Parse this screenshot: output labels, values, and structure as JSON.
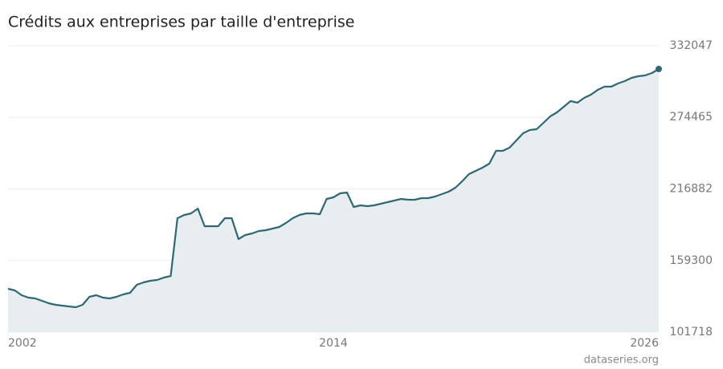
{
  "chart_data": {
    "type": "area",
    "title": "Crédits aux entreprises par taille d'entreprise",
    "source": "dataseries.org",
    "x": [
      2002,
      2002.25,
      2002.5,
      2002.75,
      2003,
      2003.25,
      2003.5,
      2003.75,
      2004,
      2004.25,
      2004.5,
      2004.75,
      2005,
      2005.25,
      2005.5,
      2005.75,
      2006,
      2006.25,
      2006.5,
      2006.75,
      2007,
      2007.25,
      2007.5,
      2007.75,
      2008,
      2008.25,
      2008.5,
      2008.75,
      2009,
      2009.25,
      2009.5,
      2009.75,
      2010,
      2010.25,
      2010.5,
      2010.75,
      2011,
      2011.25,
      2011.5,
      2011.75,
      2012,
      2012.25,
      2012.5,
      2012.75,
      2013,
      2013.25,
      2013.5,
      2013.75,
      2014,
      2014.25,
      2014.5,
      2014.75,
      2015,
      2015.25,
      2015.5,
      2015.75,
      2016,
      2016.25,
      2016.5,
      2016.75,
      2017,
      2017.25,
      2017.5,
      2017.75,
      2018,
      2018.25,
      2018.5,
      2018.75,
      2019,
      2019.25,
      2019.5,
      2019.75,
      2020,
      2020.25,
      2020.5,
      2020.75,
      2021,
      2021.25,
      2021.5,
      2021.75,
      2022,
      2022.25,
      2022.5,
      2022.75,
      2023,
      2023.25,
      2023.5,
      2023.75,
      2024,
      2024.25,
      2024.5,
      2024.75,
      2025,
      2025.25,
      2025.5,
      2025.75,
      2026
    ],
    "values": [
      136551,
      135261,
      131389,
      129454,
      128809,
      126873,
      124937,
      123647,
      123002,
      122357,
      121711,
      123647,
      130099,
      131389,
      129454,
      128809,
      130099,
      132035,
      133325,
      139777,
      141713,
      143003,
      143648,
      145584,
      146874,
      193329,
      195909,
      197200,
      201071,
      186877,
      186877,
      186877,
      193329,
      193329,
      176553,
      179779,
      181070,
      183005,
      183651,
      184941,
      186231,
      189457,
      193329,
      195909,
      197200,
      197200,
      196555,
      208813,
      210104,
      213330,
      213975,
      202361,
      203652,
      203007,
      203652,
      204942,
      206233,
      207523,
      208813,
      208168,
      208168,
      209459,
      209459,
      210749,
      212685,
      214620,
      217846,
      223008,
      228815,
      231395,
      233976,
      237202,
      247525,
      247525,
      250106,
      255913,
      261720,
      264301,
      264946,
      270107,
      275269,
      278495,
      283011,
      287528,
      286237,
      290109,
      292689,
      296561,
      299141,
      299141,
      301722,
      303658,
      306239,
      307529,
      308174,
      310110,
      313336
    ],
    "color": "#2f6874",
    "area_color": "#e8eef0",
    "xlim": [
      2002,
      2026
    ],
    "xticks": [
      2002,
      2014,
      2026
    ],
    "ylim": [
      101718,
      332047
    ],
    "yticks": [
      101718,
      159300,
      216882,
      274465,
      332047
    ],
    "grid": true
  }
}
